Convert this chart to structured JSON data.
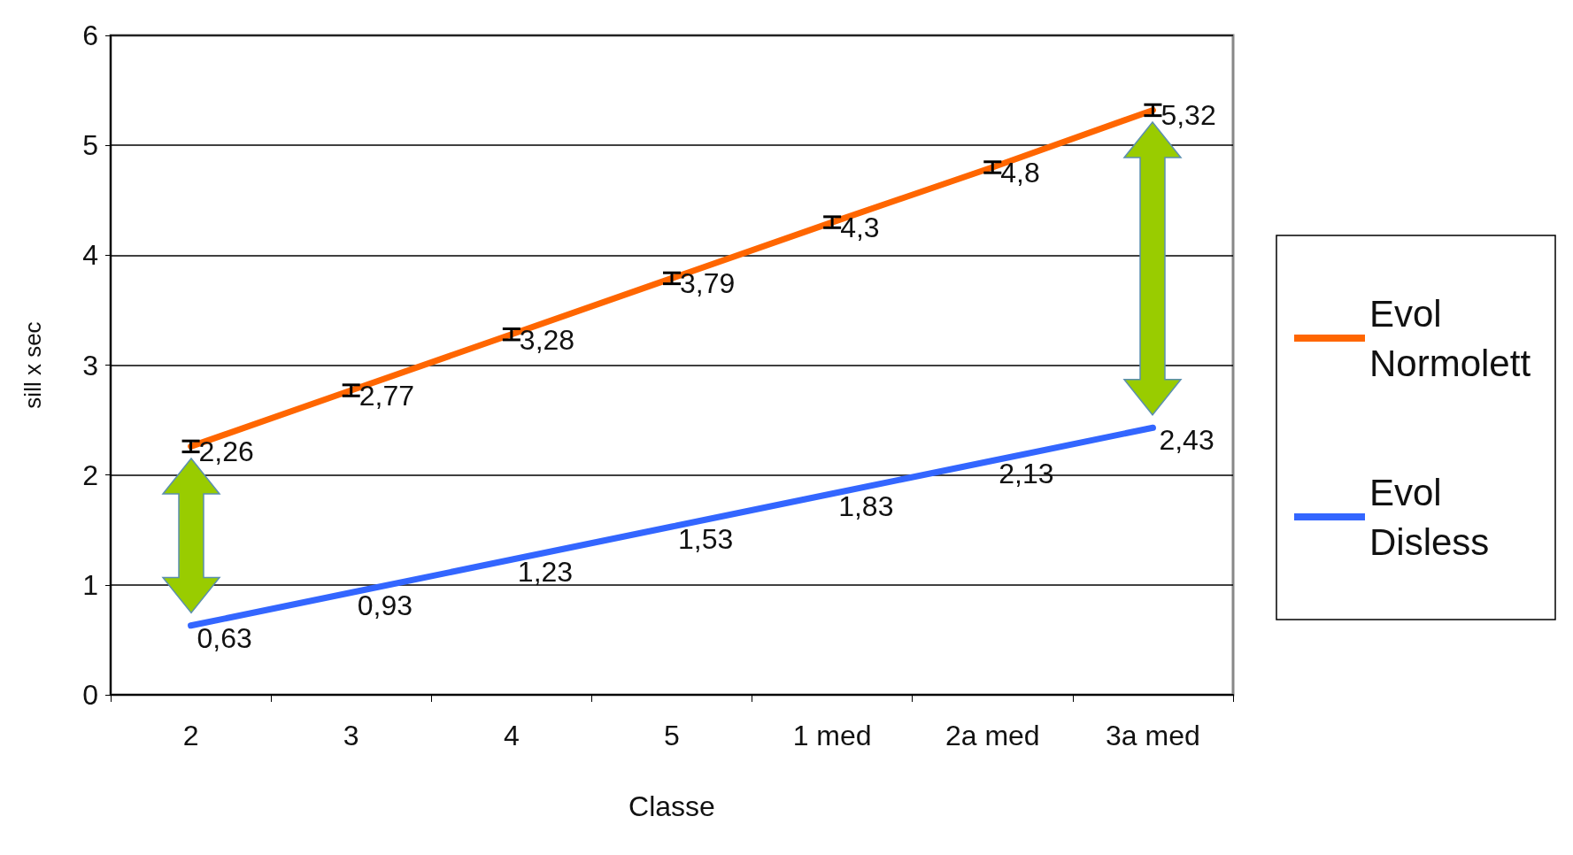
{
  "chart_data": {
    "type": "line",
    "xlabel": "Classe",
    "ylabel": "sill x sec",
    "categories": [
      "2",
      "3",
      "4",
      "5",
      "1 med",
      "2a med",
      "3a med"
    ],
    "series": [
      {
        "name": "Evol Normolett",
        "color": "#ff6600",
        "values": [
          2.26,
          2.77,
          3.28,
          3.79,
          4.3,
          4.8,
          5.32
        ],
        "errors": [
          0.05,
          0.05,
          0.05,
          0.05,
          0.05,
          0.05,
          0.05
        ],
        "value_labels": [
          "2,26",
          "2,77",
          "3,28",
          "3,79",
          "4,3",
          "4,8",
          "5,32"
        ]
      },
      {
        "name": "Evol Disless",
        "color": "#3366ff",
        "values": [
          0.63,
          0.93,
          1.23,
          1.53,
          1.83,
          2.13,
          2.43
        ],
        "value_labels": [
          "0,63",
          "0,93",
          "1,23",
          "1,53",
          "1,83",
          "2,13",
          "2,43"
        ]
      }
    ],
    "ylim": [
      0,
      6
    ],
    "yticks": [
      0,
      1,
      2,
      3,
      4,
      5,
      6
    ],
    "grid": "y",
    "legend": "right",
    "marker": "none",
    "line_style": "solid"
  }
}
